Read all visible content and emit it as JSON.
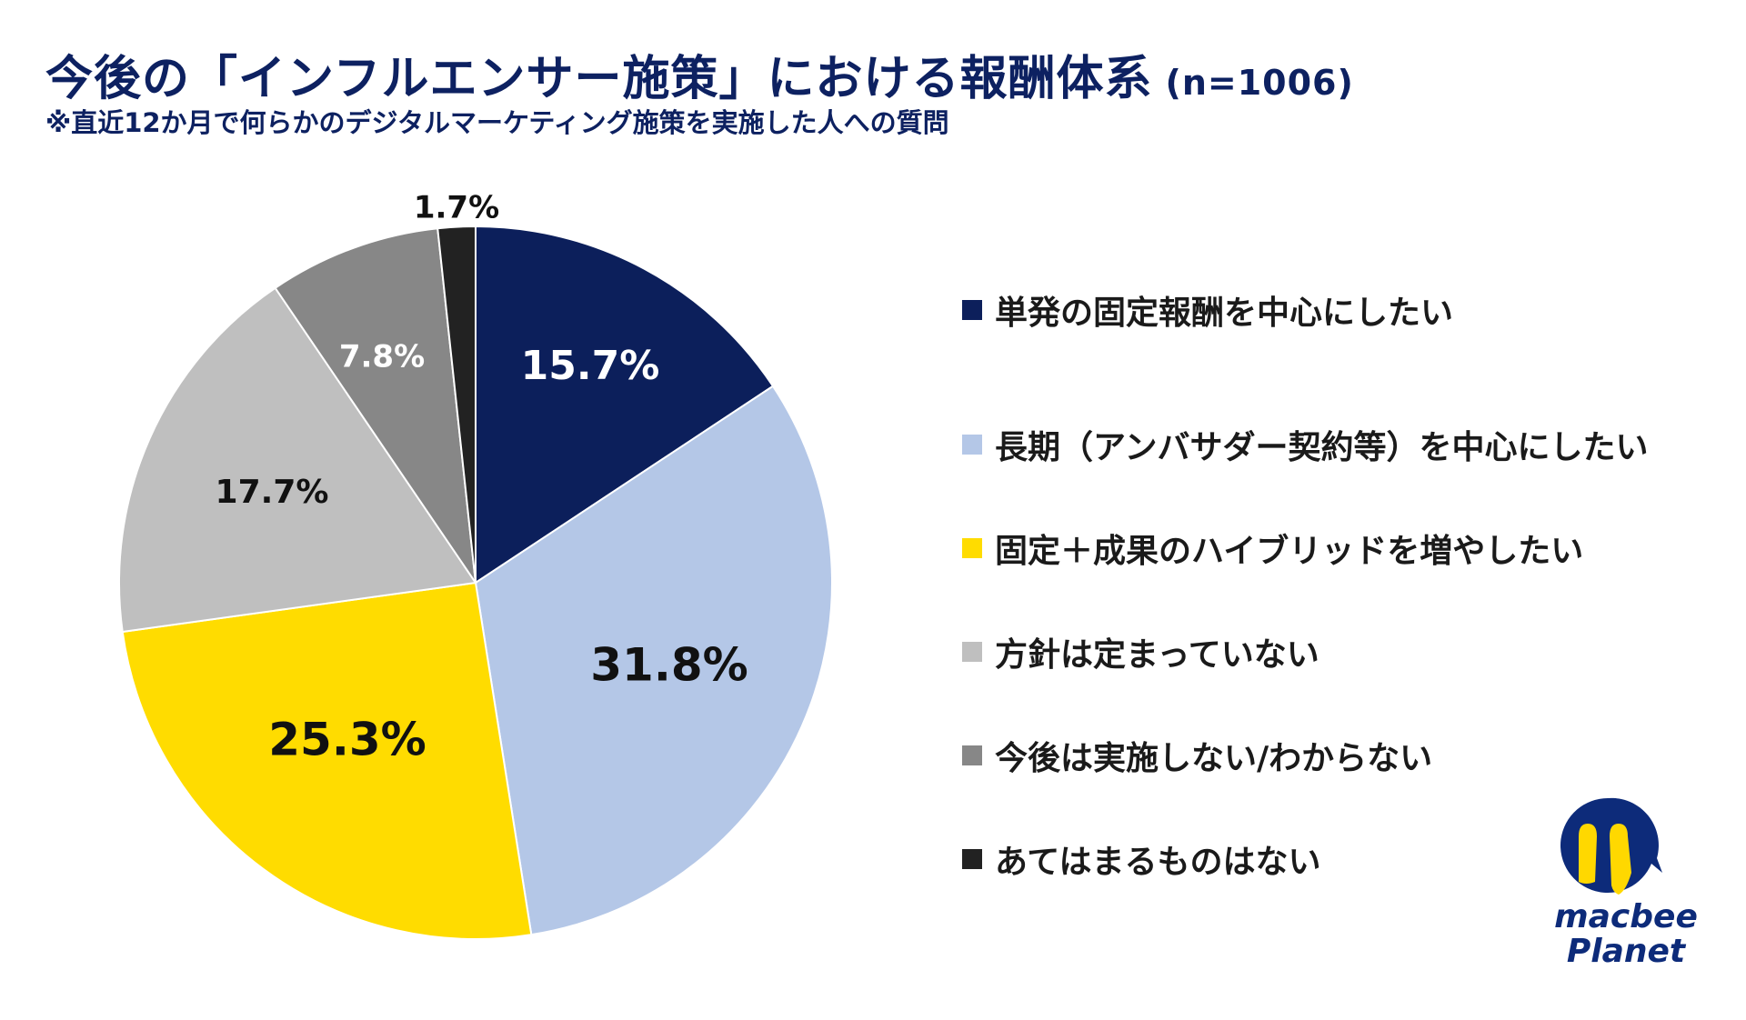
{
  "header": {
    "title": "今後の「インフルエンサー施策」における報酬体系",
    "sample": "(n=1006)",
    "subtitle": "※直近12か月で何らかのデジタルマーケティング施策を実施した人への質問"
  },
  "chart_data": {
    "type": "pie",
    "title": "今後の「インフルエンサー施策」における報酬体系",
    "start": "top",
    "direction": "clockwise",
    "legend_position": "right",
    "slices": [
      {
        "name": "単発の固定報酬を中心にしたい",
        "value": 15.7,
        "label": "15.7%",
        "color": "#0c1f5b",
        "label_color": "#ffffff"
      },
      {
        "name": "長期（アンバサダー契約等）を中心にしたい",
        "value": 31.8,
        "label": "31.8%",
        "color": "#b4c7e7",
        "label_color": "#111111"
      },
      {
        "name": "固定＋成果のハイブリッドを増やしたい",
        "value": 25.3,
        "label": "25.3%",
        "color": "#ffdc00",
        "label_color": "#111111"
      },
      {
        "name": "方針は定まっていない",
        "value": 17.7,
        "label": "17.7%",
        "color": "#bfbfbf",
        "label_color": "#111111"
      },
      {
        "name": "今後は実施しない/わからない",
        "value": 7.8,
        "label": "7.8%",
        "color": "#878787",
        "label_color": "#ffffff"
      },
      {
        "name": "あてはまるものはない",
        "value": 1.7,
        "label": "1.7%",
        "color": "#222222",
        "label_color": "#111111"
      }
    ]
  },
  "logo": {
    "text_line1": "macbee",
    "text_line2": "Planet"
  }
}
